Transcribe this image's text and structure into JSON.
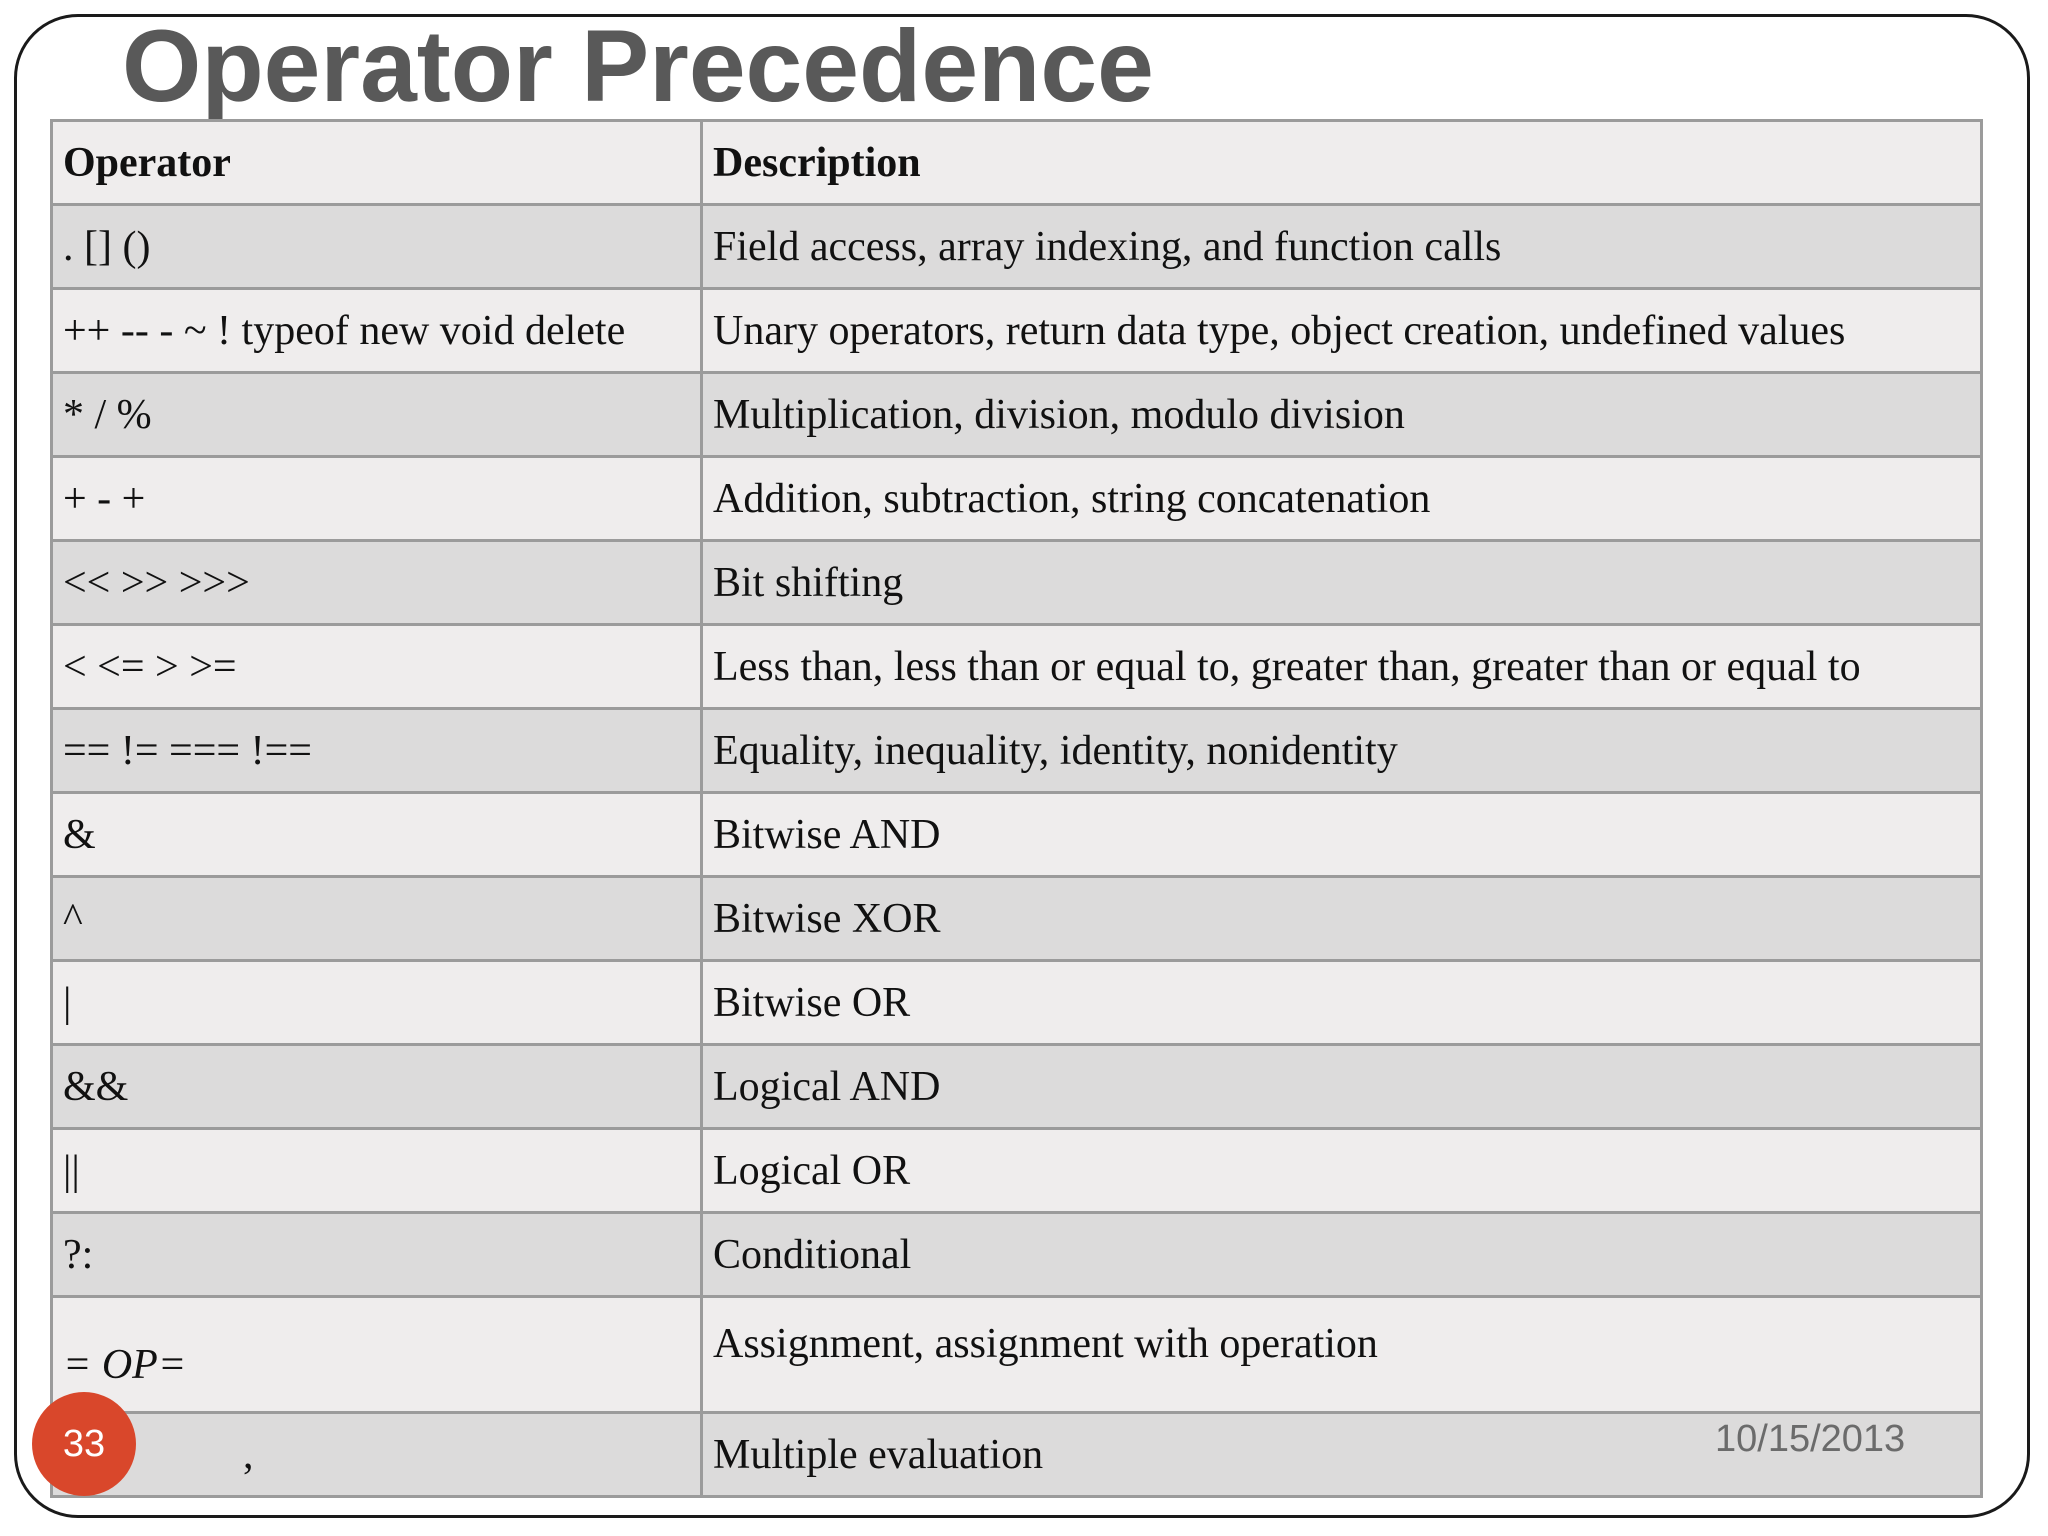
{
  "slide": {
    "title": "Operator Precedence",
    "number": "33",
    "date": "10/15/2013"
  },
  "table": {
    "headers": {
      "operator": "Operator",
      "description": "Description"
    },
    "rows": [
      {
        "operator": ". [] ()",
        "description": "Field access, array indexing, and function calls"
      },
      {
        "operator": "++ -- - ~ ! typeof new void delete",
        "description": "Unary operators, return data type, object creation, undefined values"
      },
      {
        "operator": "* / %",
        "description": "Multiplication, division, modulo division"
      },
      {
        "operator": "+ - +",
        "description": "Addition, subtraction, string concatenation"
      },
      {
        "operator": "<< >> >>>",
        "description": "Bit shifting"
      },
      {
        "operator": "< <= > >=",
        "description": "Less than, less than or equal to, greater than, greater than or equal to"
      },
      {
        "operator": "== != === !==",
        "description": "Equality, inequality, identity, nonidentity"
      },
      {
        "operator": "&",
        "description": "Bitwise AND"
      },
      {
        "operator": "^",
        "description": "Bitwise XOR"
      },
      {
        "operator": "|",
        "description": "Bitwise OR"
      },
      {
        "operator": "&&",
        "description": "Logical AND"
      },
      {
        "operator": "||",
        "description": "Logical OR"
      },
      {
        "operator": "?:",
        "description": "Conditional"
      },
      {
        "operator": "= OP=",
        "description": "Assignment, assignment with operation"
      },
      {
        "operator": ",",
        "description": "Multiple evaluation"
      }
    ]
  }
}
